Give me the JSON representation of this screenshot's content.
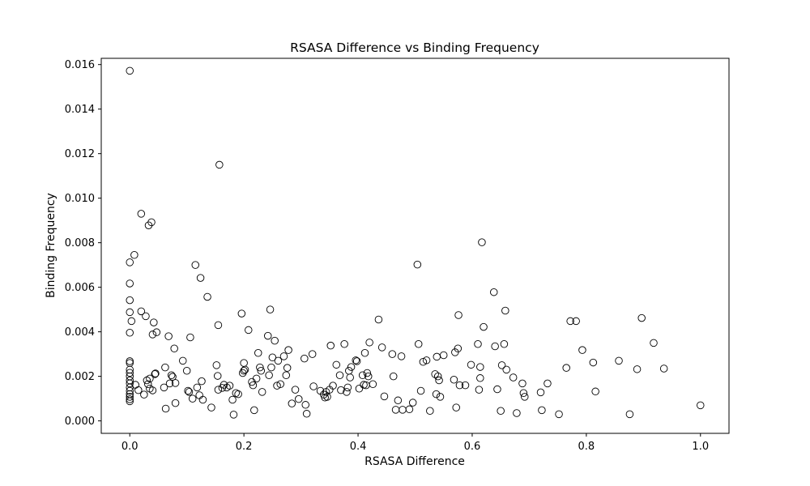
{
  "chart_data": {
    "type": "scatter",
    "title": "RSASA Difference vs Binding Frequency",
    "xlabel": "RSASA Difference",
    "ylabel": "Binding Frequency",
    "xlim": [
      -0.05,
      1.05
    ],
    "ylim": [
      -0.00056,
      0.01628
    ],
    "xticks": [
      "0.0",
      "0.2",
      "0.4",
      "0.6",
      "0.8",
      "1.0"
    ],
    "yticks": [
      "0.000",
      "0.002",
      "0.004",
      "0.006",
      "0.008",
      "0.010",
      "0.012",
      "0.014",
      "0.016"
    ],
    "grid": false,
    "legend": "none",
    "marker": "hollow-circle",
    "marker_color": "#000000",
    "points": [
      [
        0.0,
        0.01572
      ],
      [
        0.0,
        0.00712
      ],
      [
        0.0,
        0.00617
      ],
      [
        0.0,
        0.00542
      ],
      [
        0.0,
        0.00488
      ],
      [
        0.0,
        0.00396
      ],
      [
        0.0,
        0.00268
      ],
      [
        0.0,
        0.0026
      ],
      [
        0.0,
        0.0023
      ],
      [
        0.0,
        0.00216
      ],
      [
        0.0,
        0.002
      ],
      [
        0.0,
        0.00182
      ],
      [
        0.0,
        0.00168
      ],
      [
        0.0,
        0.0015
      ],
      [
        0.0,
        0.00135
      ],
      [
        0.0,
        0.0012
      ],
      [
        0.0,
        0.00108
      ],
      [
        0.0,
        0.00097
      ],
      [
        0.0,
        0.00088
      ],
      [
        0.003,
        0.00448
      ],
      [
        0.008,
        0.00745
      ],
      [
        0.01,
        0.00162
      ],
      [
        0.015,
        0.00138
      ],
      [
        0.02,
        0.0093
      ],
      [
        0.02,
        0.00492
      ],
      [
        0.025,
        0.00118
      ],
      [
        0.028,
        0.0047
      ],
      [
        0.03,
        0.00182
      ],
      [
        0.032,
        0.00165
      ],
      [
        0.033,
        0.00878
      ],
      [
        0.035,
        0.00145
      ],
      [
        0.035,
        0.0019
      ],
      [
        0.038,
        0.00892
      ],
      [
        0.04,
        0.00137
      ],
      [
        0.04,
        0.00388
      ],
      [
        0.042,
        0.00442
      ],
      [
        0.044,
        0.0021
      ],
      [
        0.045,
        0.00213
      ],
      [
        0.047,
        0.00398
      ],
      [
        0.06,
        0.0015
      ],
      [
        0.062,
        0.0024
      ],
      [
        0.063,
        0.00055
      ],
      [
        0.068,
        0.0038
      ],
      [
        0.07,
        0.00168
      ],
      [
        0.073,
        0.00205
      ],
      [
        0.075,
        0.00198
      ],
      [
        0.078,
        0.00325
      ],
      [
        0.08,
        0.0017
      ],
      [
        0.08,
        0.0008
      ],
      [
        0.093,
        0.0027
      ],
      [
        0.1,
        0.00225
      ],
      [
        0.102,
        0.00135
      ],
      [
        0.104,
        0.0013
      ],
      [
        0.106,
        0.00375
      ],
      [
        0.11,
        0.001
      ],
      [
        0.115,
        0.007
      ],
      [
        0.118,
        0.0015
      ],
      [
        0.122,
        0.00115
      ],
      [
        0.124,
        0.00642
      ],
      [
        0.126,
        0.00178
      ],
      [
        0.128,
        0.00095
      ],
      [
        0.136,
        0.00557
      ],
      [
        0.143,
        0.0006
      ],
      [
        0.152,
        0.0025
      ],
      [
        0.154,
        0.00202
      ],
      [
        0.155,
        0.0014
      ],
      [
        0.155,
        0.0043
      ],
      [
        0.157,
        0.0115
      ],
      [
        0.162,
        0.00148
      ],
      [
        0.165,
        0.00162
      ],
      [
        0.17,
        0.0015
      ],
      [
        0.175,
        0.00158
      ],
      [
        0.18,
        0.00095
      ],
      [
        0.182,
        0.00028
      ],
      [
        0.186,
        0.00125
      ],
      [
        0.19,
        0.0012
      ],
      [
        0.196,
        0.00482
      ],
      [
        0.198,
        0.00215
      ],
      [
        0.2,
        0.0026
      ],
      [
        0.2,
        0.00225
      ],
      [
        0.202,
        0.0023
      ],
      [
        0.208,
        0.00408
      ],
      [
        0.214,
        0.00175
      ],
      [
        0.216,
        0.0016
      ],
      [
        0.218,
        0.00048
      ],
      [
        0.222,
        0.0019
      ],
      [
        0.225,
        0.00305
      ],
      [
        0.228,
        0.0024
      ],
      [
        0.23,
        0.00225
      ],
      [
        0.232,
        0.0013
      ],
      [
        0.242,
        0.00382
      ],
      [
        0.244,
        0.00205
      ],
      [
        0.246,
        0.005
      ],
      [
        0.248,
        0.0024
      ],
      [
        0.25,
        0.00285
      ],
      [
        0.254,
        0.0036
      ],
      [
        0.258,
        0.00158
      ],
      [
        0.26,
        0.0027
      ],
      [
        0.264,
        0.00165
      ],
      [
        0.27,
        0.0029
      ],
      [
        0.274,
        0.00205
      ],
      [
        0.276,
        0.00238
      ],
      [
        0.278,
        0.00318
      ],
      [
        0.284,
        0.00078
      ],
      [
        0.29,
        0.0014
      ],
      [
        0.296,
        0.00098
      ],
      [
        0.306,
        0.0028
      ],
      [
        0.308,
        0.00072
      ],
      [
        0.31,
        0.00032
      ],
      [
        0.32,
        0.003
      ],
      [
        0.322,
        0.00155
      ],
      [
        0.334,
        0.00135
      ],
      [
        0.34,
        0.00118
      ],
      [
        0.342,
        0.00105
      ],
      [
        0.344,
        0.0013
      ],
      [
        0.346,
        0.00108
      ],
      [
        0.35,
        0.0014
      ],
      [
        0.352,
        0.00338
      ],
      [
        0.356,
        0.00158
      ],
      [
        0.362,
        0.00252
      ],
      [
        0.368,
        0.00205
      ],
      [
        0.37,
        0.00138
      ],
      [
        0.376,
        0.00345
      ],
      [
        0.38,
        0.0013
      ],
      [
        0.382,
        0.0015
      ],
      [
        0.384,
        0.00225
      ],
      [
        0.386,
        0.00195
      ],
      [
        0.388,
        0.00242
      ],
      [
        0.396,
        0.00272
      ],
      [
        0.398,
        0.00268
      ],
      [
        0.402,
        0.00145
      ],
      [
        0.408,
        0.00205
      ],
      [
        0.41,
        0.00162
      ],
      [
        0.412,
        0.00305
      ],
      [
        0.414,
        0.0016
      ],
      [
        0.416,
        0.00215
      ],
      [
        0.418,
        0.002
      ],
      [
        0.42,
        0.00352
      ],
      [
        0.426,
        0.00165
      ],
      [
        0.436,
        0.00455
      ],
      [
        0.442,
        0.0033
      ],
      [
        0.446,
        0.0011
      ],
      [
        0.46,
        0.003
      ],
      [
        0.462,
        0.002
      ],
      [
        0.466,
        0.0005
      ],
      [
        0.47,
        0.00092
      ],
      [
        0.476,
        0.0029
      ],
      [
        0.478,
        0.0005
      ],
      [
        0.49,
        0.00052
      ],
      [
        0.496,
        0.00082
      ],
      [
        0.504,
        0.00702
      ],
      [
        0.506,
        0.00345
      ],
      [
        0.51,
        0.00135
      ],
      [
        0.514,
        0.00265
      ],
      [
        0.52,
        0.00272
      ],
      [
        0.526,
        0.00045
      ],
      [
        0.535,
        0.0021
      ],
      [
        0.537,
        0.0012
      ],
      [
        0.538,
        0.00288
      ],
      [
        0.54,
        0.002
      ],
      [
        0.542,
        0.00182
      ],
      [
        0.544,
        0.00108
      ],
      [
        0.55,
        0.00295
      ],
      [
        0.568,
        0.00185
      ],
      [
        0.57,
        0.00308
      ],
      [
        0.572,
        0.0006
      ],
      [
        0.575,
        0.00325
      ],
      [
        0.576,
        0.00475
      ],
      [
        0.578,
        0.0016
      ],
      [
        0.588,
        0.0016
      ],
      [
        0.598,
        0.00252
      ],
      [
        0.61,
        0.00345
      ],
      [
        0.612,
        0.0014
      ],
      [
        0.614,
        0.00192
      ],
      [
        0.614,
        0.00242
      ],
      [
        0.617,
        0.00802
      ],
      [
        0.62,
        0.00422
      ],
      [
        0.638,
        0.00578
      ],
      [
        0.64,
        0.00335
      ],
      [
        0.644,
        0.00142
      ],
      [
        0.65,
        0.00045
      ],
      [
        0.652,
        0.0025
      ],
      [
        0.656,
        0.00345
      ],
      [
        0.658,
        0.00495
      ],
      [
        0.66,
        0.0023
      ],
      [
        0.672,
        0.00195
      ],
      [
        0.678,
        0.00035
      ],
      [
        0.688,
        0.00168
      ],
      [
        0.69,
        0.00125
      ],
      [
        0.692,
        0.00108
      ],
      [
        0.72,
        0.00128
      ],
      [
        0.722,
        0.00048
      ],
      [
        0.732,
        0.00168
      ],
      [
        0.752,
        0.0003
      ],
      [
        0.765,
        0.00238
      ],
      [
        0.772,
        0.00448
      ],
      [
        0.782,
        0.00448
      ],
      [
        0.793,
        0.00318
      ],
      [
        0.812,
        0.00262
      ],
      [
        0.816,
        0.00132
      ],
      [
        0.857,
        0.0027
      ],
      [
        0.876,
        0.0003
      ],
      [
        0.889,
        0.00232
      ],
      [
        0.897,
        0.00462
      ],
      [
        0.918,
        0.0035
      ],
      [
        0.936,
        0.00235
      ],
      [
        1.0,
        0.0007
      ]
    ]
  }
}
